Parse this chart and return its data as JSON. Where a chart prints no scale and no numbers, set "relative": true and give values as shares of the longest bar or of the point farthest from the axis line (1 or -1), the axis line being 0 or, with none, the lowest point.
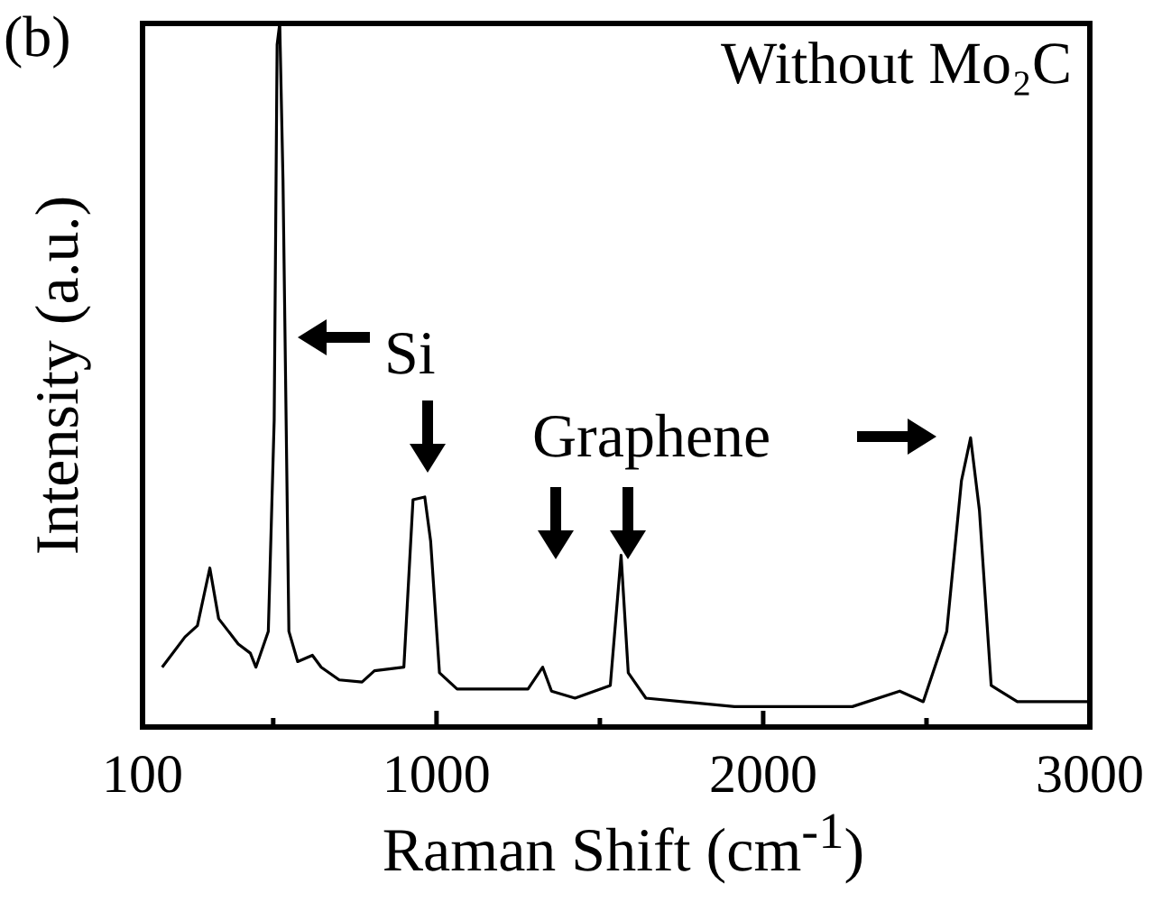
{
  "chart_data": {
    "type": "line",
    "relative": true,
    "title": "Without Mo₂C",
    "xlabel": "Raman Shift (cm$^{-1}$)",
    "ylabel": "Intensity (a.u.)",
    "annotations": [
      "(b)",
      "Si",
      "Graphene"
    ],
    "x": [
      160,
      230,
      268,
      306,
      333,
      393,
      430,
      447,
      485,
      503,
      512,
      520,
      530,
      548,
      575,
      620,
      647,
      702,
      772,
      810,
      900,
      928,
      964,
      982,
      1009,
      1063,
      1280,
      1325,
      1352,
      1424,
      1532,
      1565,
      1587,
      1641,
      1912,
      2273,
      2418,
      2490,
      2562,
      2607,
      2635,
      2662,
      2698,
      2778,
      2995
    ],
    "series": [
      {
        "color": "#000000",
        "values": [
          0.085,
          0.128,
          0.144,
          0.226,
          0.154,
          0.118,
          0.105,
          0.085,
          0.136,
          0.436,
          0.97,
          1,
          0.777,
          0.136,
          0.093,
          0.102,
          0.085,
          0.067,
          0.064,
          0.08,
          0.085,
          0.323,
          0.327,
          0.264,
          0.077,
          0.054,
          0.054,
          0.085,
          0.051,
          0.041,
          0.059,
          0.244,
          0.077,
          0.041,
          0.029,
          0.029,
          0.051,
          0.036,
          0.136,
          0.35,
          0.411,
          0.308,
          0.059,
          0.036,
          0.036
        ]
      }
    ],
    "xlim": [
      100,
      3000
    ],
    "xticks": [
      100,
      {
        "value": 500,
        "label": null
      },
      1000,
      {
        "value": 1500,
        "label": null
      },
      2000,
      {
        "value": 2500,
        "label": null
      },
      3000
    ],
    "tick_labels": "x",
    "marker": "none",
    "line_style": "solid"
  }
}
